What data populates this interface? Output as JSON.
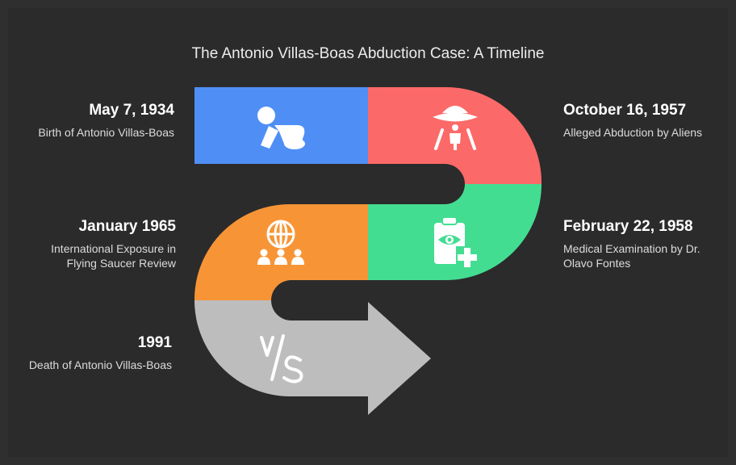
{
  "title": "The Antonio Villas-Boas Abduction Case: A Timeline",
  "colors": {
    "background": "#2b2b2b",
    "step1": "#4f8ff5",
    "step2": "#fb6a68",
    "step3": "#43dd92",
    "step4": "#f79536",
    "step5": "#bdbdbd",
    "icon": "#ffffff"
  },
  "events": [
    {
      "date": "May 7, 1934",
      "description": "Birth of Antonio Villas-Boas",
      "icon": "baby-crawling-icon"
    },
    {
      "date": "October 16, 1957",
      "description": "Alleged Abduction by Aliens",
      "icon": "ufo-abduction-icon"
    },
    {
      "date": "February 22, 1958",
      "description": "Medical Examination by Dr. Olavo Fontes",
      "icon": "medical-clipboard-icon"
    },
    {
      "date": "January 1965",
      "description": "International Exposure in Flying Saucer Review",
      "icon": "globe-audience-icon"
    },
    {
      "date": "1991",
      "description": "Death of Antonio Villas-Boas",
      "icon": "versus-icon"
    }
  ]
}
